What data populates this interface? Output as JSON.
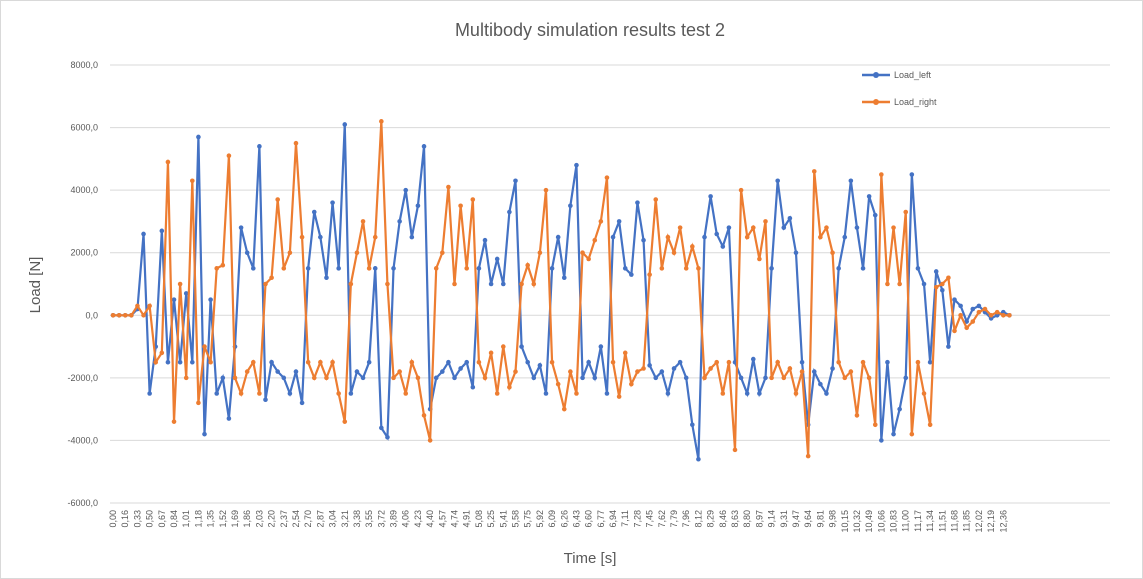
{
  "chart_data": {
    "type": "line",
    "title": "Multibody simulation results test 2",
    "x_label": "Time [s]",
    "y_label": "Load [N]",
    "ylim": [
      -6000,
      8000
    ],
    "yticks": [
      {
        "value": -6000,
        "label": "-6000,0"
      },
      {
        "value": -4000,
        "label": "-4000,0"
      },
      {
        "value": -2000,
        "label": "-2000,0"
      },
      {
        "value": 0,
        "label": "0,0"
      },
      {
        "value": 2000,
        "label": "2000,0"
      },
      {
        "value": 4000,
        "label": "4000,0"
      },
      {
        "value": 6000,
        "label": "6000,0"
      },
      {
        "value": 8000,
        "label": "8000,0"
      }
    ],
    "grid": true,
    "legend": "top-right",
    "markers": true,
    "categories": [
      "0,00",
      null,
      "0,16",
      null,
      "0,33",
      null,
      "0,50",
      null,
      "0,67",
      null,
      "0,84",
      null,
      "1,01",
      null,
      "1,18",
      null,
      "1,35",
      null,
      "1,52",
      null,
      "1,69",
      null,
      "1,86",
      null,
      "2,03",
      null,
      "2,20",
      null,
      "2,37",
      null,
      "2,54",
      null,
      "2,70",
      null,
      "2,87",
      null,
      "3,04",
      null,
      "3,21",
      null,
      "3,38",
      null,
      "3,55",
      null,
      "3,72",
      null,
      "3,89",
      null,
      "4,06",
      null,
      "4,23",
      null,
      "4,40",
      null,
      "4,57",
      null,
      "4,74",
      null,
      "4,91",
      null,
      "5,08",
      null,
      "5,25",
      null,
      "5,41",
      null,
      "5,58",
      null,
      "5,75",
      null,
      "5,92",
      null,
      "6,09",
      null,
      "6,26",
      null,
      "6,43",
      null,
      "6,60",
      null,
      "6,77",
      null,
      "6,94",
      null,
      "7,11",
      null,
      "7,28",
      null,
      "7,45",
      null,
      "7,62",
      null,
      "7,79",
      null,
      "7,96",
      null,
      "8,12",
      null,
      "8,29",
      null,
      "8,46",
      null,
      "8,63",
      null,
      "8,80",
      null,
      "8,97",
      null,
      "9,14",
      null,
      "9,31",
      null,
      "9,47",
      null,
      "9,64",
      null,
      "9,81",
      null,
      "9,98",
      null,
      "10,15",
      null,
      "10,32",
      null,
      "10,49",
      null,
      "10,66",
      null,
      "10,83",
      null,
      "11,00",
      null,
      "11,17",
      null,
      "11,34",
      null,
      "11,51",
      null,
      "11,68",
      null,
      "11,85",
      null,
      "12,02",
      null,
      "12,19",
      null,
      "12,36",
      null,
      null,
      null,
      null,
      null,
      null,
      null,
      null,
      null,
      null,
      null,
      null,
      null,
      null,
      null,
      null,
      null
    ],
    "series": [
      {
        "name": "Load_left",
        "color": "#4472c4",
        "values": [
          0,
          0,
          0,
          0,
          200,
          2600,
          -2500,
          -1000,
          2700,
          -1500,
          500,
          -1500,
          700,
          -1500,
          5700,
          -3800,
          500,
          -2500,
          -2000,
          -3300,
          -1000,
          2800,
          2000,
          1500,
          5400,
          -2700,
          -1500,
          -1800,
          -2000,
          -2500,
          -1800,
          -2800,
          1500,
          3300,
          2500,
          1200,
          3600,
          1500,
          6100,
          -2500,
          -1800,
          -2000,
          -1500,
          1500,
          -3600,
          -3900,
          1500,
          3000,
          4000,
          2500,
          3500,
          5400,
          -3000,
          -2000,
          -1800,
          -1500,
          -2000,
          -1700,
          -1500,
          -2300,
          1500,
          2400,
          1000,
          1800,
          1000,
          3300,
          4300,
          -1000,
          -1500,
          -2000,
          -1600,
          -2500,
          1500,
          2500,
          1200,
          3500,
          4800,
          -2000,
          -1500,
          -2000,
          -1000,
          -2500,
          2500,
          3000,
          1500,
          1300,
          3600,
          2400,
          -1600,
          -2000,
          -1800,
          -2500,
          -1700,
          -1500,
          -2000,
          -3500,
          -4600,
          2500,
          3800,
          2600,
          2200,
          2800,
          -1500,
          -2000,
          -2500,
          -1400,
          -2500,
          -2000,
          1500,
          4300,
          2800,
          3100,
          2000,
          -1500,
          -3500,
          -1800,
          -2200,
          -2500,
          -1700,
          1500,
          2500,
          4300,
          2800,
          1500,
          3800,
          3200,
          -4000,
          -1500,
          -3800,
          -3000,
          -2000,
          4500,
          1500,
          1000,
          -1500,
          1400,
          800,
          -1000,
          500,
          300,
          -200,
          200,
          300,
          100,
          -100,
          0,
          100,
          0,
          null,
          null,
          null,
          null,
          null,
          null,
          null,
          null,
          null,
          null,
          null,
          null,
          null,
          null,
          null,
          null
        ]
      },
      {
        "name": "Load_right",
        "color": "#ed7d31",
        "values": [
          0,
          0,
          0,
          0,
          300,
          0,
          300,
          -1500,
          -1200,
          4900,
          -3400,
          1000,
          -2000,
          4300,
          -2800,
          -1000,
          -1500,
          1500,
          1600,
          5100,
          -2000,
          -2500,
          -1800,
          -1500,
          -2500,
          1000,
          1200,
          3700,
          1500,
          2000,
          5500,
          2500,
          -1500,
          -2000,
          -1500,
          -2000,
          -1500,
          -2500,
          -3400,
          1000,
          2000,
          3000,
          1500,
          2500,
          6200,
          1000,
          -2000,
          -1800,
          -2500,
          -1500,
          -2000,
          -3200,
          -4000,
          1500,
          2000,
          4100,
          1000,
          3500,
          1500,
          3700,
          -1500,
          -2000,
          -1200,
          -2500,
          -1000,
          -2300,
          -1800,
          1000,
          1600,
          1000,
          2000,
          4000,
          -1500,
          -2200,
          -3000,
          -1800,
          -2500,
          2000,
          1800,
          2400,
          3000,
          4400,
          -1500,
          -2600,
          -1200,
          -2200,
          -1800,
          -1700,
          1300,
          3700,
          1500,
          2500,
          2000,
          2800,
          1500,
          2200,
          1500,
          -2000,
          -1700,
          -1500,
          -2500,
          -1500,
          -4300,
          4000,
          2500,
          2800,
          1800,
          3000,
          -2000,
          -1500,
          -2000,
          -1700,
          -2500,
          -1800,
          -4500,
          4600,
          2500,
          2800,
          2000,
          -1500,
          -2000,
          -1800,
          -3200,
          -1500,
          -2000,
          -3500,
          4500,
          1000,
          2800,
          1000,
          3300,
          -3800,
          -1500,
          -2500,
          -3500,
          900,
          1000,
          1200,
          -500,
          0,
          -400,
          -200,
          100,
          200,
          0,
          100,
          0,
          0,
          null,
          null,
          null,
          null,
          null,
          null,
          null,
          null,
          null,
          null,
          null,
          null,
          null,
          null,
          null,
          null
        ]
      }
    ]
  }
}
